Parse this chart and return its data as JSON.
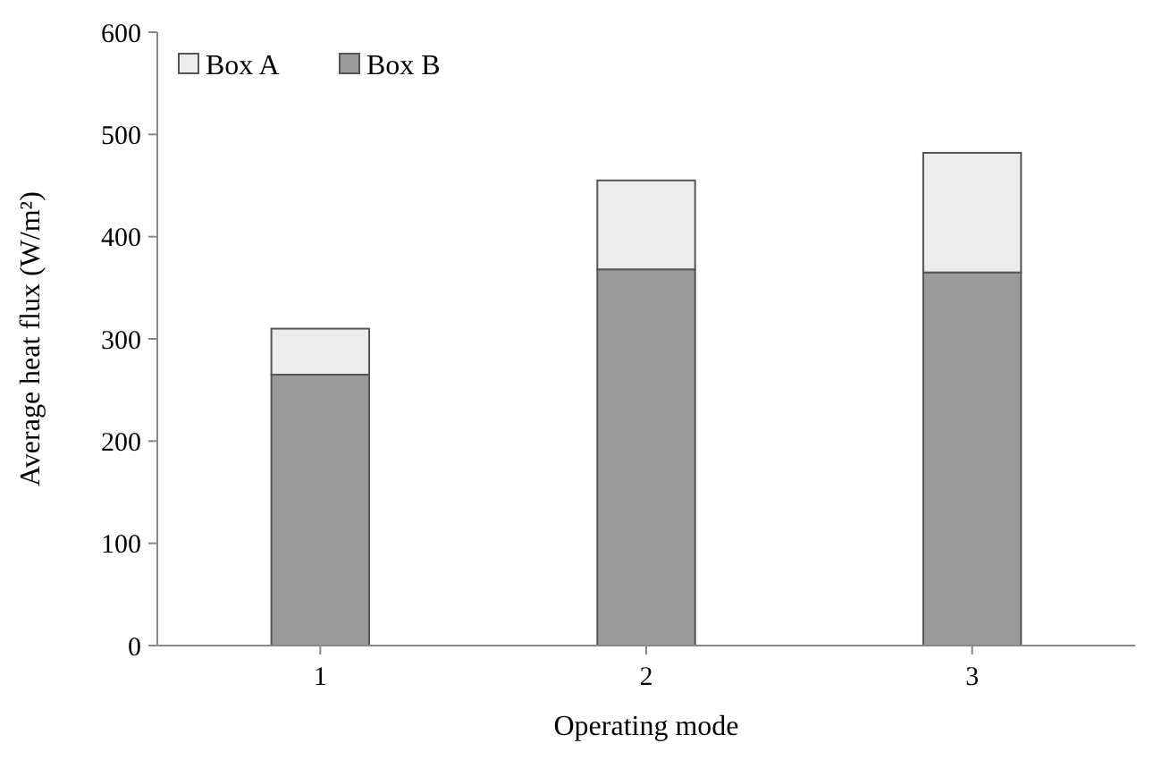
{
  "chart_data": {
    "type": "bar",
    "stacked": true,
    "xlabel": "Operating mode",
    "ylabel": "Average heat flux (W/m²)",
    "categories": [
      "1",
      "2",
      "3"
    ],
    "series": [
      {
        "name": "Box B",
        "color": "#9a9a9a",
        "values": [
          265,
          368,
          365
        ]
      },
      {
        "name": "Box A",
        "color": "#ececec",
        "values": [
          45,
          87,
          117
        ]
      }
    ],
    "ylim": [
      0,
      600
    ],
    "yticks": [
      0,
      100,
      200,
      300,
      400,
      500,
      600
    ],
    "grid": false,
    "legend": "top left"
  }
}
